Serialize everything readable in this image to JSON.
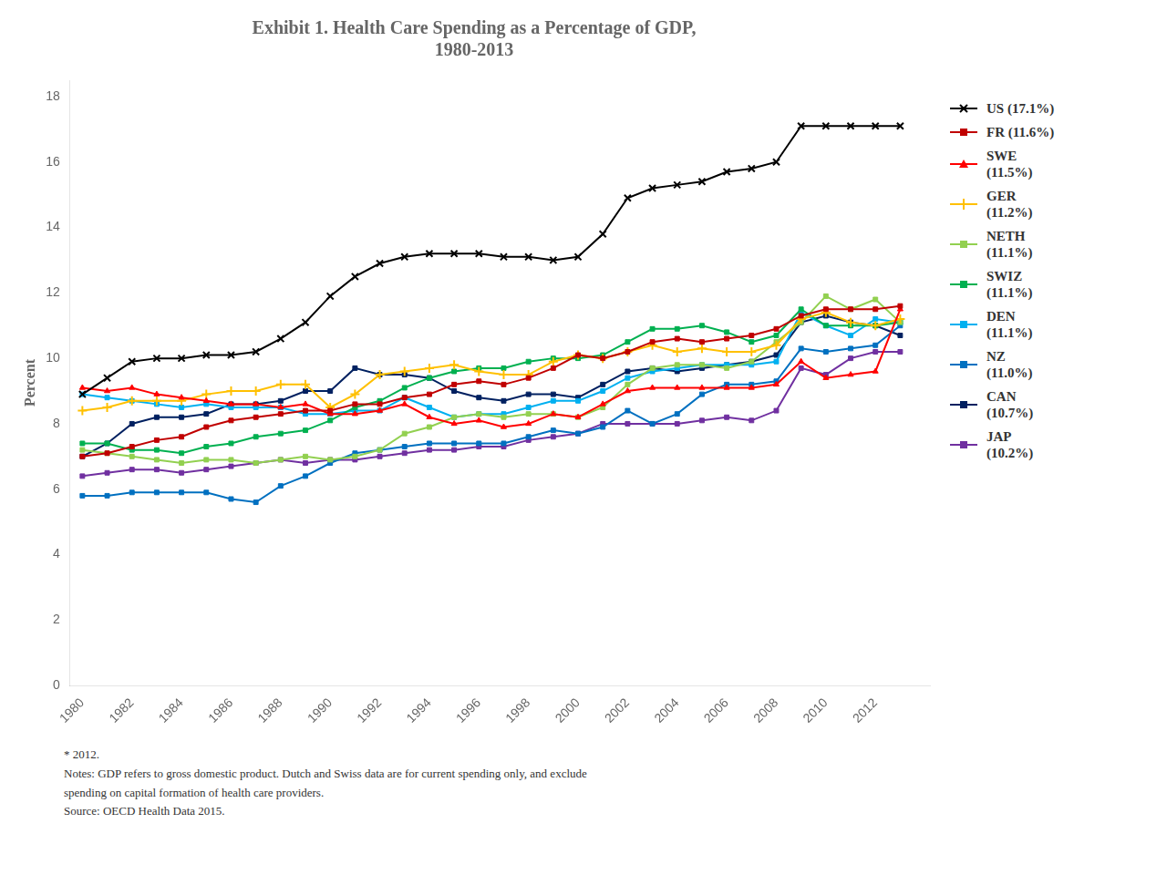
{
  "chart_data": {
    "type": "line",
    "title": "Exhibit 1. Health Care Spending as a Percentage of GDP,\n1980-2013",
    "ylabel": "Percent",
    "x": [
      1980,
      1981,
      1982,
      1983,
      1984,
      1985,
      1986,
      1987,
      1988,
      1989,
      1990,
      1991,
      1992,
      1993,
      1994,
      1995,
      1996,
      1997,
      1998,
      1999,
      2000,
      2001,
      2002,
      2003,
      2004,
      2005,
      2006,
      2007,
      2008,
      2009,
      2010,
      2011,
      2012,
      2013
    ],
    "xlim": [
      1979.5,
      2014.2
    ],
    "xticks": [
      1980,
      1982,
      1984,
      1986,
      1988,
      1990,
      1992,
      1994,
      1996,
      1998,
      2000,
      2002,
      2004,
      2006,
      2008,
      2010,
      2012
    ],
    "ylim": [
      0,
      18.5
    ],
    "yticks": [
      0,
      2,
      4,
      6,
      8,
      10,
      12,
      14,
      16,
      18
    ],
    "grid": false,
    "legend": "right",
    "series": [
      {
        "name": "US (17.1%)",
        "color": "#000000",
        "marker": "x",
        "values": [
          8.9,
          9.4,
          9.9,
          10.0,
          10.0,
          10.1,
          10.1,
          10.2,
          10.6,
          11.1,
          11.9,
          12.5,
          12.9,
          13.1,
          13.2,
          13.2,
          13.2,
          13.1,
          13.1,
          13.0,
          13.1,
          13.8,
          14.9,
          15.2,
          15.3,
          15.4,
          15.7,
          15.8,
          16.0,
          17.1,
          17.1,
          17.1,
          17.1,
          17.1
        ]
      },
      {
        "name": "FR (11.6%)",
        "color": "#c00000",
        "marker": "square",
        "values": [
          7.0,
          7.1,
          7.3,
          7.5,
          7.6,
          7.9,
          8.1,
          8.2,
          8.3,
          8.4,
          8.4,
          8.6,
          8.6,
          8.8,
          8.9,
          9.2,
          9.3,
          9.2,
          9.4,
          9.7,
          10.1,
          10.0,
          10.2,
          10.5,
          10.6,
          10.5,
          10.6,
          10.7,
          10.9,
          11.3,
          11.5,
          11.5,
          11.5,
          11.6
        ]
      },
      {
        "name": "SWE\n(11.5%)",
        "color": "#ff0000",
        "marker": "triangle",
        "values": [
          9.1,
          9.0,
          9.1,
          8.9,
          8.8,
          8.7,
          8.6,
          8.6,
          8.5,
          8.6,
          8.3,
          8.3,
          8.4,
          8.6,
          8.2,
          8.0,
          8.1,
          7.9,
          8.0,
          8.3,
          8.2,
          8.6,
          9.0,
          9.1,
          9.1,
          9.1,
          9.1,
          9.1,
          9.2,
          9.9,
          9.4,
          9.5,
          9.6,
          11.5
        ]
      },
      {
        "name": "GER\n(11.2%)",
        "color": "#ffc000",
        "marker": "plus",
        "values": [
          8.4,
          8.5,
          8.7,
          8.7,
          8.7,
          8.9,
          9.0,
          9.0,
          9.2,
          9.2,
          8.5,
          8.9,
          9.5,
          9.6,
          9.7,
          9.8,
          9.6,
          9.5,
          9.5,
          9.9,
          10.1,
          10.0,
          10.2,
          10.4,
          10.2,
          10.3,
          10.2,
          10.2,
          10.4,
          11.2,
          11.4,
          11.1,
          11.0,
          11.2
        ]
      },
      {
        "name": "NETH\n(11.1%)",
        "color": "#92d050",
        "marker": "square",
        "values": [
          7.2,
          7.1,
          7.0,
          6.9,
          6.8,
          6.9,
          6.9,
          6.8,
          6.9,
          7.0,
          6.9,
          7.0,
          7.2,
          7.7,
          7.9,
          8.2,
          8.3,
          8.2,
          8.3,
          8.3,
          8.2,
          8.5,
          9.2,
          9.7,
          9.8,
          9.8,
          9.7,
          9.9,
          10.5,
          11.1,
          11.9,
          11.5,
          11.8,
          11.1
        ]
      },
      {
        "name": "SWIZ\n(11.1%)",
        "color": "#00b050",
        "marker": "square",
        "values": [
          7.4,
          7.4,
          7.2,
          7.2,
          7.1,
          7.3,
          7.4,
          7.6,
          7.7,
          7.8,
          8.1,
          8.5,
          8.7,
          9.1,
          9.4,
          9.6,
          9.7,
          9.7,
          9.9,
          10.0,
          10.0,
          10.1,
          10.5,
          10.9,
          10.9,
          11.0,
          10.8,
          10.5,
          10.7,
          11.5,
          11.0,
          11.0,
          11.0,
          11.1
        ]
      },
      {
        "name": "DEN\n(11.1%)",
        "color": "#00b0f0",
        "marker": "square",
        "values": [
          8.9,
          8.8,
          8.7,
          8.6,
          8.5,
          8.6,
          8.5,
          8.5,
          8.5,
          8.3,
          8.3,
          8.4,
          8.4,
          8.8,
          8.5,
          8.2,
          8.3,
          8.3,
          8.5,
          8.7,
          8.7,
          9.0,
          9.4,
          9.6,
          9.7,
          9.8,
          9.8,
          9.8,
          9.9,
          11.4,
          11.0,
          10.7,
          11.2,
          11.1
        ]
      },
      {
        "name": "NZ\n(11.0%)",
        "color": "#0070c0",
        "marker": "square",
        "values": [
          5.8,
          5.8,
          5.9,
          5.9,
          5.9,
          5.9,
          5.7,
          5.6,
          6.1,
          6.4,
          6.8,
          7.1,
          7.2,
          7.3,
          7.4,
          7.4,
          7.4,
          7.4,
          7.6,
          7.8,
          7.7,
          7.9,
          8.4,
          8.0,
          8.3,
          8.9,
          9.2,
          9.2,
          9.3,
          10.3,
          10.2,
          10.3,
          10.4,
          11.0
        ]
      },
      {
        "name": "CAN\n(10.7%)",
        "color": "#002060",
        "marker": "square",
        "values": [
          7.0,
          7.4,
          8.0,
          8.2,
          8.2,
          8.3,
          8.6,
          8.6,
          8.7,
          9.0,
          9.0,
          9.7,
          9.5,
          9.5,
          9.4,
          9.0,
          8.8,
          8.7,
          8.9,
          8.9,
          8.8,
          9.2,
          9.6,
          9.7,
          9.6,
          9.7,
          9.8,
          9.9,
          10.1,
          11.1,
          11.3,
          11.1,
          11.0,
          10.7
        ]
      },
      {
        "name": "JAP\n(10.2%)",
        "color": "#7030a0",
        "marker": "square",
        "values": [
          6.4,
          6.5,
          6.6,
          6.6,
          6.5,
          6.6,
          6.7,
          6.8,
          6.9,
          6.8,
          6.9,
          6.9,
          7.0,
          7.1,
          7.2,
          7.2,
          7.3,
          7.3,
          7.5,
          7.6,
          7.7,
          8.0,
          8.0,
          8.0,
          8.0,
          8.1,
          8.2,
          8.1,
          8.4,
          9.7,
          9.5,
          10.0,
          10.2,
          10.2
        ]
      }
    ],
    "annotations": [
      "* 2012.",
      "Notes: GDP refers to gross domestic product. Dutch and Swiss data are for current spending only, and exclude",
      "spending on capital formation of health care providers.",
      "Source: OECD Health Data 2015."
    ]
  }
}
